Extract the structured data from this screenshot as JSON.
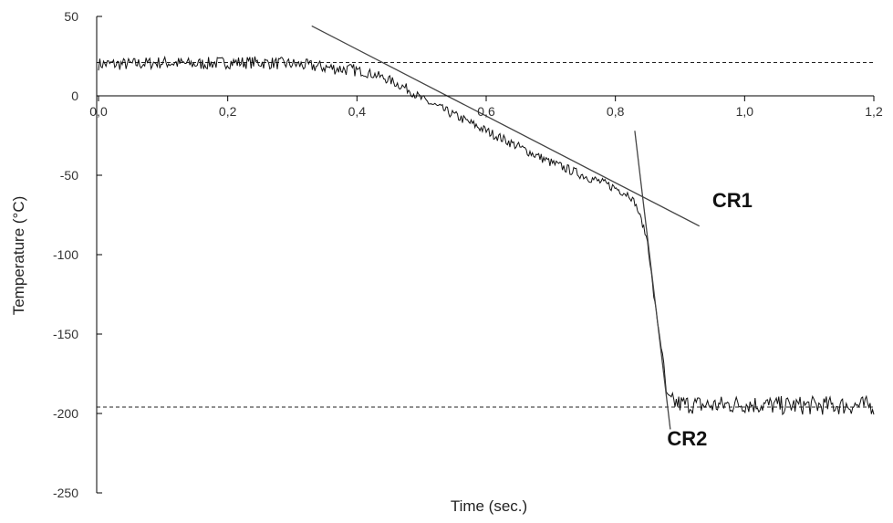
{
  "chart_data": {
    "type": "line",
    "title": "",
    "xlabel": "Time (sec.)",
    "ylabel": "Temperature (°C)",
    "xlim": [
      0,
      1.2
    ],
    "ylim": [
      -250,
      50
    ],
    "xticks": [
      "0,0",
      "0,2",
      "0,4",
      "0,6",
      "0,8",
      "1,0",
      "1,2"
    ],
    "yticks": [
      "50",
      "0",
      "-50",
      "-100",
      "-150",
      "-200",
      "-250"
    ],
    "grid": false,
    "legend": "none",
    "series": [
      {
        "x": [
          0.0,
          0.05,
          0.1,
          0.15,
          0.2,
          0.25,
          0.3,
          0.35,
          0.4,
          0.43,
          0.45,
          0.48,
          0.5,
          0.52,
          0.55,
          0.58,
          0.6,
          0.65,
          0.7,
          0.75,
          0.8,
          0.82,
          0.83,
          0.84,
          0.85,
          0.855,
          0.86,
          0.87,
          0.875,
          0.88,
          0.9,
          0.95,
          1.0,
          1.05,
          1.1,
          1.15,
          1.2
        ],
        "y": [
          20,
          20,
          21,
          20,
          21,
          21,
          20,
          18,
          16,
          13,
          10,
          4,
          -2,
          -6,
          -12,
          -18,
          -22,
          -32,
          -42,
          -50,
          -58,
          -62,
          -67,
          -78,
          -92,
          -110,
          -128,
          -155,
          -170,
          -192,
          -194,
          -195,
          -194,
          -195,
          -195,
          -195,
          -195
        ]
      },
      {
        "x": [
          0.33,
          0.93
        ],
        "y": [
          44,
          -82
        ]
      },
      {
        "x": [
          0.83,
          0.885
        ],
        "y": [
          -22,
          -210
        ]
      }
    ],
    "reference_lines_y": [
      21,
      -196
    ],
    "annotations": [
      {
        "text": "CR1",
        "x": 0.95,
        "y": -70
      },
      {
        "text": "CR2",
        "x": 0.88,
        "y": -220
      }
    ]
  },
  "colors": {
    "line": "#111111",
    "tangent": "#444444",
    "dashed": "#222222",
    "axis": "#000000"
  }
}
